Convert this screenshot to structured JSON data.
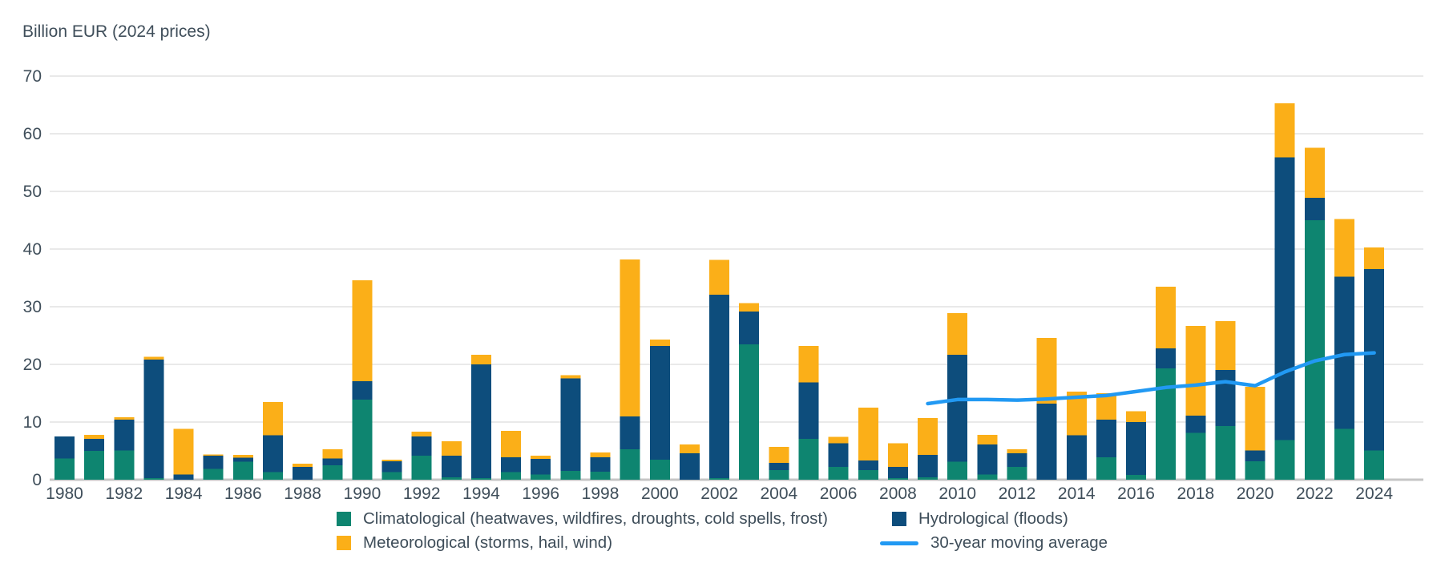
{
  "title": "Billion EUR (2024 prices)",
  "legend": {
    "climatological": "Climatological (heatwaves, wildfires, droughts, cold spells, frost)",
    "meteorological": "Meteorological (storms, hail, wind)",
    "hydrological": "Hydrological (floods)",
    "moving_average": "30-year moving average"
  },
  "colors": {
    "climatological": "#0e8570",
    "hydrological": "#0d4d7c",
    "meteorological": "#fbaf18",
    "moving_average": "#2199f3",
    "gridline": "#e9e9e9",
    "baseline": "#c6c6c6",
    "text": "#3f4e5a"
  },
  "chart_data": {
    "type": "bar",
    "stacked": true,
    "title": "Billion EUR (2024 prices)",
    "ylabel": "Billion EUR (2024 prices)",
    "xlabel": "",
    "ylim": [
      0,
      70
    ],
    "yticks": [
      0,
      10,
      20,
      30,
      40,
      50,
      60,
      70
    ],
    "xtick_label_step": 2,
    "grid": true,
    "legend_position": "bottom",
    "categories": [
      1980,
      1981,
      1982,
      1983,
      1984,
      1985,
      1986,
      1987,
      1988,
      1989,
      1990,
      1991,
      1992,
      1993,
      1994,
      1995,
      1996,
      1997,
      1998,
      1999,
      2000,
      2001,
      2002,
      2003,
      2004,
      2005,
      2006,
      2007,
      2008,
      2009,
      2010,
      2011,
      2012,
      2013,
      2014,
      2015,
      2016,
      2017,
      2018,
      2019,
      2020,
      2021,
      2022,
      2023,
      2024
    ],
    "series": [
      {
        "key": "climatological",
        "name": "Climatological (heatwaves, wildfires, droughts, cold spells, frost)",
        "color": "#0e8570",
        "values": [
          3.7,
          5.0,
          5.1,
          0.3,
          0,
          1.9,
          3.1,
          1.3,
          0,
          2.5,
          13.9,
          1.3,
          4.2,
          0.4,
          0.3,
          1.3,
          0.9,
          1.5,
          1.4,
          5.3,
          3.5,
          0,
          0.3,
          23.5,
          1.7,
          7.1,
          2.2,
          1.7,
          0.3,
          0.4,
          3.1,
          0.9,
          2.2,
          0,
          0,
          3.9,
          0.8,
          19.3,
          8.1,
          9.3,
          3.2,
          6.9,
          45.0,
          8.8,
          5.1
        ]
      },
      {
        "key": "hydrological",
        "name": "Hydrological (floods)",
        "color": "#0d4d7c",
        "values": [
          3.8,
          2.1,
          5.3,
          20.5,
          0.9,
          2.3,
          0.7,
          6.4,
          2.2,
          1.2,
          3.2,
          1.9,
          3.3,
          3.8,
          19.7,
          2.6,
          2.7,
          16.1,
          2.5,
          5.7,
          19.7,
          4.6,
          31.8,
          5.7,
          1.2,
          9.8,
          4.1,
          1.6,
          1.9,
          3.9,
          18.6,
          5.2,
          2.4,
          13.2,
          7.7,
          6.5,
          9.2,
          3.5,
          3.0,
          9.7,
          1.9,
          49.0,
          3.9,
          26.4,
          31.4
        ]
      },
      {
        "key": "meteorological",
        "name": "Meteorological (storms, hail, wind)",
        "color": "#fbaf18",
        "values": [
          0,
          0.7,
          0.4,
          0.5,
          7.9,
          0.2,
          0.5,
          5.8,
          0.6,
          1.6,
          17.5,
          0.3,
          0.8,
          2.5,
          1.7,
          4.6,
          0.6,
          0.5,
          0.8,
          27.2,
          1.1,
          1.5,
          6.0,
          1.4,
          2.8,
          6.3,
          1.1,
          9.2,
          4.1,
          6.4,
          7.2,
          1.7,
          0.7,
          11.4,
          7.6,
          4.6,
          1.9,
          10.7,
          15.6,
          8.5,
          11.0,
          9.4,
          8.7,
          10.0,
          3.8
        ]
      }
    ],
    "line_series": {
      "key": "moving_average",
      "name": "30-year moving average",
      "color": "#2199f3",
      "x": [
        2009,
        2010,
        2011,
        2012,
        2013,
        2014,
        2015,
        2016,
        2017,
        2018,
        2019,
        2020,
        2021,
        2022,
        2023,
        2024
      ],
      "values": [
        13.2,
        13.9,
        13.9,
        13.8,
        14.0,
        14.3,
        14.6,
        15.3,
        16.0,
        16.4,
        17.0,
        16.3,
        18.7,
        20.6,
        21.7,
        22.0
      ]
    }
  }
}
